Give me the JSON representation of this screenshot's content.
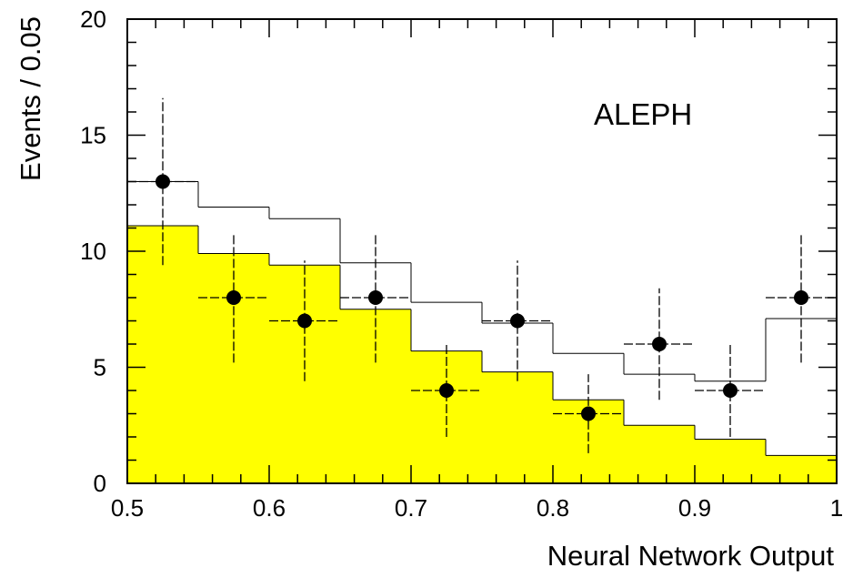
{
  "chart_data": {
    "type": "histogram",
    "annotation": "ALEPH",
    "xlabel": "Neural Network Output",
    "ylabel": "Events / 0.05",
    "xlim": [
      0.5,
      1.0
    ],
    "ylim": [
      0,
      20
    ],
    "xticks": [
      0.5,
      0.6,
      0.7,
      0.8,
      0.9,
      1.0
    ],
    "xtick_labels": [
      "0.5",
      "0.6",
      "0.7",
      "0.8",
      "0.9",
      "1"
    ],
    "yticks": [
      0,
      5,
      10,
      15,
      20
    ],
    "ytick_labels": [
      "0",
      "5",
      "10",
      "15",
      "20"
    ],
    "bin_edges": [
      0.5,
      0.55,
      0.6,
      0.65,
      0.7,
      0.75,
      0.8,
      0.85,
      0.9,
      0.95,
      1.0
    ],
    "series": [
      {
        "kind": "filled-histogram",
        "color": "#ffff00",
        "values": [
          11.1,
          9.9,
          9.4,
          7.5,
          5.7,
          4.8,
          3.6,
          2.5,
          1.9,
          1.2
        ]
      },
      {
        "kind": "outline-histogram",
        "color": "#000000",
        "values": [
          13.0,
          11.9,
          11.4,
          9.5,
          7.8,
          6.9,
          5.6,
          4.7,
          4.4,
          7.1
        ]
      },
      {
        "kind": "data-points",
        "color": "#000000",
        "x": [
          0.525,
          0.575,
          0.625,
          0.675,
          0.725,
          0.775,
          0.825,
          0.875,
          0.925,
          0.975
        ],
        "y": [
          13,
          8,
          7,
          8,
          4,
          7,
          3,
          6,
          4,
          8
        ],
        "yerr_low": [
          3.6,
          2.8,
          2.6,
          2.8,
          2.0,
          2.6,
          1.7,
          2.4,
          2.0,
          2.8
        ],
        "yerr_high": [
          3.6,
          2.8,
          2.6,
          2.8,
          2.0,
          2.6,
          1.7,
          2.4,
          2.0,
          2.8
        ],
        "xerr": 0.025
      }
    ]
  }
}
